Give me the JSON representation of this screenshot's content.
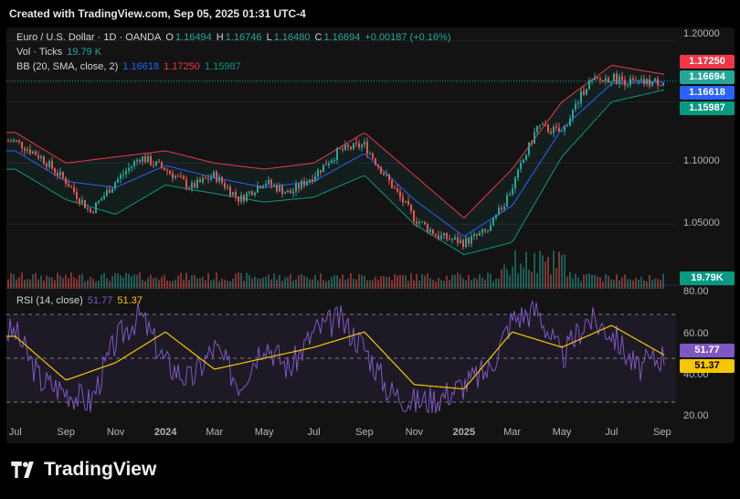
{
  "header": {
    "text": "Created with TradingView.com, Sep 05, 2025 01:31 UTC-4"
  },
  "legend": {
    "symbol": "Euro / U.S. Dollar · 1D · OANDA",
    "o_label": "O",
    "o_value": "1.16494",
    "h_label": "H",
    "h_value": "1.16746",
    "l_label": "L",
    "l_value": "1.16480",
    "c_label": "C",
    "c_value": "1.16694",
    "change": "+0.00187 (+0.16%)",
    "vol_label": "Vol · Ticks",
    "vol_value": "19.79 K",
    "bb_label": "BB (20, SMA, close, 2)",
    "bb_basis": "1.16618",
    "bb_upper": "1.17250",
    "bb_lower": "1.15987",
    "rsi_label": "RSI (14, close)",
    "rsi_value": "51.77",
    "rsi_ma": "51.37"
  },
  "price_tags": {
    "upper": "1.17250",
    "close": "1.16694",
    "basis": "1.16618",
    "lower": "1.15987",
    "volume": "19.79K"
  },
  "rsi_tags": {
    "rsi": "51.77",
    "ma": "51.37"
  },
  "footer": {
    "brand": "TradingView"
  },
  "colors": {
    "up": "#26a69a",
    "down": "#ef5350",
    "bb_upper": "#f23645",
    "bb_basis": "#2962ff",
    "bb_lower": "#089981",
    "rsi": "#7e57c2",
    "rsi_ma": "#f7c600"
  },
  "chart_data": [
    {
      "type": "line",
      "title": "Euro / U.S. Dollar · 1D · OANDA",
      "series": [
        {
          "name": "Euro / U.S. Dollar",
          "x": [
            "2023-07-01",
            "2023-08-01",
            "2023-09-01",
            "2023-10-01",
            "2023-11-01",
            "2023-12-01",
            "2024-01-01",
            "2024-02-01",
            "2024-03-01",
            "2024-04-01",
            "2024-05-01",
            "2024-06-01",
            "2024-07-01",
            "2024-08-01",
            "2024-09-01",
            "2024-10-01",
            "2024-11-01",
            "2024-12-01",
            "2025-01-01",
            "2025-02-01",
            "2025-03-01",
            "2025-04-01",
            "2025-05-01",
            "2025-06-01",
            "2025-07-01",
            "2025-08-01",
            "2025-09-04"
          ],
          "values": [
            1.118,
            1.105,
            1.085,
            1.06,
            1.085,
            1.105,
            1.095,
            1.08,
            1.09,
            1.07,
            1.085,
            1.075,
            1.09,
            1.11,
            1.115,
            1.085,
            1.055,
            1.04,
            1.035,
            1.045,
            1.08,
            1.13,
            1.125,
            1.165,
            1.17,
            1.165,
            1.16694
          ]
        },
        {
          "name": "BB upper",
          "x": [
            "2023-07-01",
            "2023-09-01",
            "2023-11-01",
            "2024-01-01",
            "2024-03-01",
            "2024-05-01",
            "2024-07-01",
            "2024-09-01",
            "2024-11-01",
            "2025-01-01",
            "2025-03-01",
            "2025-05-01",
            "2025-07-01",
            "2025-09-04"
          ],
          "values": [
            1.125,
            1.1,
            1.105,
            1.11,
            1.1,
            1.095,
            1.1,
            1.125,
            1.09,
            1.055,
            1.095,
            1.15,
            1.18,
            1.1725
          ]
        },
        {
          "name": "BB basis",
          "x": [
            "2023-07-01",
            "2023-09-01",
            "2023-11-01",
            "2024-01-01",
            "2024-03-01",
            "2024-05-01",
            "2024-07-01",
            "2024-09-01",
            "2024-11-01",
            "2025-01-01",
            "2025-03-01",
            "2025-05-01",
            "2025-07-01",
            "2025-09-04"
          ],
          "values": [
            1.11,
            1.085,
            1.08,
            1.098,
            1.088,
            1.08,
            1.085,
            1.108,
            1.07,
            1.04,
            1.065,
            1.128,
            1.165,
            1.16618
          ]
        },
        {
          "name": "BB lower",
          "x": [
            "2023-07-01",
            "2023-09-01",
            "2023-11-01",
            "2024-01-01",
            "2024-03-01",
            "2024-05-01",
            "2024-07-01",
            "2024-09-01",
            "2024-11-01",
            "2025-01-01",
            "2025-03-01",
            "2025-05-01",
            "2025-07-01",
            "2025-09-04"
          ],
          "values": [
            1.095,
            1.07,
            1.058,
            1.082,
            1.075,
            1.068,
            1.072,
            1.09,
            1.05,
            1.025,
            1.035,
            1.105,
            1.15,
            1.15987
          ]
        }
      ],
      "ylim": [
        1.015,
        1.205
      ],
      "yticks": [
        "1.20000",
        "1.15000",
        "1.10000",
        "1.05000"
      ],
      "xticks": [
        "Jul",
        "Sep",
        "Nov",
        "2024",
        "Mar",
        "May",
        "Jul",
        "Sep",
        "Nov",
        "2025",
        "Mar",
        "May",
        "Jul",
        "Sep"
      ],
      "grid": true
    },
    {
      "type": "line",
      "title": "RSI (14, close)",
      "series": [
        {
          "name": "RSI",
          "x": [
            "2023-07-01",
            "2023-08-01",
            "2023-09-01",
            "2023-10-01",
            "2023-11-01",
            "2023-12-01",
            "2024-01-01",
            "2024-02-01",
            "2024-03-01",
            "2024-04-01",
            "2024-05-01",
            "2024-06-01",
            "2024-07-01",
            "2024-08-01",
            "2024-09-01",
            "2024-10-01",
            "2024-11-01",
            "2024-12-01",
            "2025-01-01",
            "2025-02-01",
            "2025-03-01",
            "2025-04-01",
            "2025-05-01",
            "2025-06-01",
            "2025-07-01",
            "2025-08-01",
            "2025-09-04"
          ],
          "values": [
            62,
            40,
            35,
            30,
            58,
            70,
            48,
            40,
            55,
            38,
            58,
            45,
            62,
            68,
            55,
            35,
            30,
            32,
            38,
            45,
            68,
            72,
            50,
            68,
            62,
            45,
            51.77
          ]
        },
        {
          "name": "RSI-based MA",
          "x": [
            "2023-07-01",
            "2023-09-01",
            "2023-11-01",
            "2024-01-01",
            "2024-03-01",
            "2024-05-01",
            "2024-07-01",
            "2024-09-01",
            "2024-11-01",
            "2025-01-01",
            "2025-03-01",
            "2025-05-01",
            "2025-07-01",
            "2025-09-04"
          ],
          "values": [
            60,
            40,
            48,
            62,
            45,
            50,
            55,
            62,
            38,
            36,
            62,
            55,
            65,
            51.37
          ]
        }
      ],
      "ylim": [
        20,
        80
      ],
      "yticks": [
        "80.00",
        "60.00",
        "40.00",
        "20.00"
      ],
      "bands": [
        30,
        70
      ]
    }
  ]
}
